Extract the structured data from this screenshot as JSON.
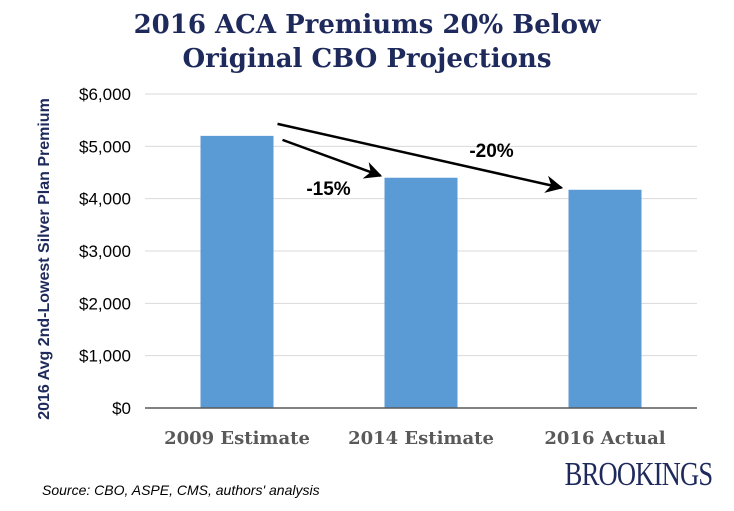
{
  "chart_data": {
    "type": "bar",
    "title": [
      "2016 ACA Premiums 20% Below",
      "Original CBO Projections"
    ],
    "categories": [
      "2009 Estimate",
      "2014 Estimate",
      "2016 Actual"
    ],
    "values": [
      5200,
      4400,
      4170
    ],
    "ylabel": "2016 Avg 2nd-Lowest Silver Plan Premium",
    "xlabel": "",
    "ylim": [
      0,
      6000
    ],
    "yticks": [
      0,
      1000,
      2000,
      3000,
      4000,
      5000,
      6000
    ],
    "ytick_labels": [
      "$0",
      "$1,000",
      "$2,000",
      "$3,000",
      "$4,000",
      "$5,000",
      "$6,000"
    ],
    "grid": true,
    "legend": "none",
    "annotations": [
      {
        "label": "-15%",
        "from": "2009 Estimate",
        "to": "2014 Estimate"
      },
      {
        "label": "-20%",
        "from": "2009 Estimate",
        "to": "2016 Actual"
      }
    ],
    "colors": {
      "bar": "#5b9bd5",
      "title": "#1f2a5c",
      "ylabel": "#1f2a5c",
      "category_label": "#595959",
      "grid": "#d9d9d9",
      "axis": "#595959",
      "brand": "#1f2a5c"
    }
  },
  "source": "Source: CBO, ASPE, CMS, authors' analysis",
  "brand": "BROOKINGS"
}
